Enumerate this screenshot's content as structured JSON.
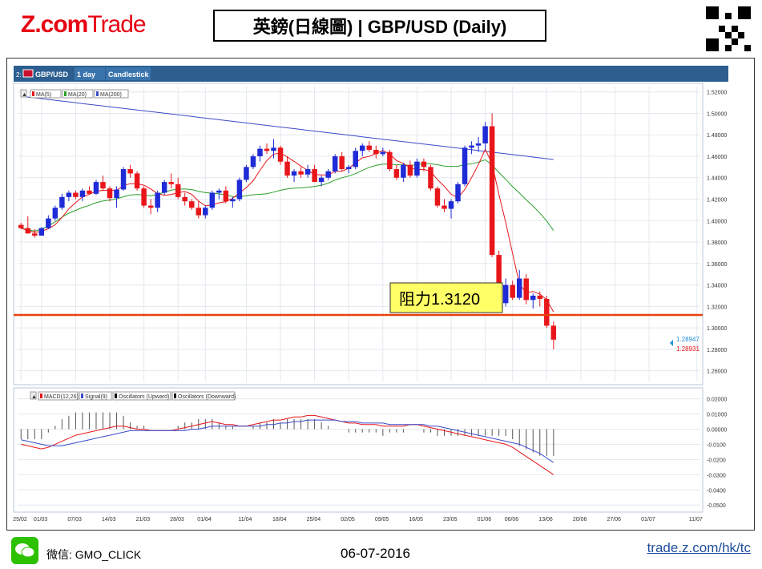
{
  "header": {
    "logo_z": "Z.",
    "logo_com": "com",
    "logo_trade": "Trade",
    "title": "英鎊(日線圖) | GBP/USD (Daily)"
  },
  "toolbar": {
    "index": "2:",
    "symbol": "GBP/USD",
    "interval": "1 day",
    "chart_style": "Candlestick"
  },
  "legend_main": [
    "MA(5)",
    "MA(20)",
    "MA(200)"
  ],
  "legend_osc": [
    "MACD(12,26)",
    "Signal(9)",
    "Oscillators (Upward)",
    "Oscillators (Downward)"
  ],
  "annotation": {
    "label": "阻力1.3120",
    "level": 1.312
  },
  "price_tags": {
    "bid": "1.28947",
    "ask": "1.28931"
  },
  "footer": {
    "wechat": "微信: GMO_CLICK",
    "date": "06-07-2016",
    "link": "trade.z.com/hk/tc"
  },
  "colors": {
    "up": "#1f2bd6",
    "down": "#e8161a",
    "ma5": "#e8161a",
    "ma20": "#2ca02c",
    "ma200": "#3b4bc8",
    "resistance": "#e8400c"
  },
  "chart_data": {
    "type": "candlestick",
    "y_ticks": [
      "1.52000",
      "1.50000",
      "1.48000",
      "1.46000",
      "1.44000",
      "1.42000",
      "1.40000",
      "1.38000",
      "1.36000",
      "1.34000",
      "1.32000",
      "1.30000",
      "1.28000",
      "1.26000"
    ],
    "ylim": [
      1.25,
      1.525
    ],
    "osc_ticks": [
      "0.02000",
      "0.01000",
      "0.00000",
      "-0.0100",
      "-0.0200",
      "-0.0300",
      "-0.0400",
      "-0.0500"
    ],
    "osc_ylim": [
      -0.052,
      0.024
    ],
    "x_labels": [
      "25/02",
      "01/03",
      "07/03",
      "14/03",
      "21/03",
      "28/03",
      "01/04",
      "11/04",
      "18/04",
      "25/04",
      "02/05",
      "09/05",
      "16/05",
      "23/05",
      "01/06",
      "06/06",
      "13/06",
      "20/06",
      "27/06",
      "01/07",
      "11/07"
    ],
    "x_label_slots": [
      0,
      3,
      8,
      13,
      18,
      23,
      27,
      33,
      38,
      43,
      48,
      53,
      58,
      63,
      68,
      72,
      77,
      82,
      87,
      92,
      99
    ],
    "candles": [
      [
        1.396,
        1.398,
        1.392,
        1.393
      ],
      [
        1.393,
        1.404,
        1.39,
        1.388
      ],
      [
        1.388,
        1.392,
        1.384,
        1.386
      ],
      [
        1.386,
        1.394,
        1.386,
        1.393
      ],
      [
        1.393,
        1.405,
        1.392,
        1.402
      ],
      [
        1.402,
        1.414,
        1.4,
        1.412
      ],
      [
        1.412,
        1.425,
        1.41,
        1.422
      ],
      [
        1.422,
        1.428,
        1.418,
        1.426
      ],
      [
        1.426,
        1.428,
        1.42,
        1.422
      ],
      [
        1.422,
        1.43,
        1.418,
        1.428
      ],
      [
        1.428,
        1.432,
        1.424,
        1.425
      ],
      [
        1.425,
        1.438,
        1.424,
        1.436
      ],
      [
        1.436,
        1.442,
        1.428,
        1.43
      ],
      [
        1.43,
        1.432,
        1.418,
        1.421
      ],
      [
        1.421,
        1.432,
        1.412,
        1.429
      ],
      [
        1.429,
        1.45,
        1.428,
        1.448
      ],
      [
        1.448,
        1.452,
        1.44,
        1.444
      ],
      [
        1.444,
        1.446,
        1.428,
        1.43
      ],
      [
        1.43,
        1.432,
        1.412,
        1.414
      ],
      [
        1.414,
        1.42,
        1.406,
        1.412
      ],
      [
        1.412,
        1.428,
        1.408,
        1.426
      ],
      [
        1.426,
        1.438,
        1.424,
        1.436
      ],
      [
        1.436,
        1.444,
        1.43,
        1.434
      ],
      [
        1.434,
        1.44,
        1.42,
        1.422
      ],
      [
        1.422,
        1.426,
        1.414,
        1.418
      ],
      [
        1.418,
        1.42,
        1.41,
        1.412
      ],
      [
        1.412,
        1.418,
        1.402,
        1.405
      ],
      [
        1.405,
        1.414,
        1.402,
        1.412
      ],
      [
        1.412,
        1.428,
        1.41,
        1.426
      ],
      [
        1.426,
        1.43,
        1.42,
        1.428
      ],
      [
        1.428,
        1.432,
        1.416,
        1.418
      ],
      [
        1.418,
        1.422,
        1.412,
        1.42
      ],
      [
        1.42,
        1.44,
        1.418,
        1.438
      ],
      [
        1.438,
        1.452,
        1.436,
        1.45
      ],
      [
        1.45,
        1.462,
        1.448,
        1.46
      ],
      [
        1.46,
        1.47,
        1.455,
        1.467
      ],
      [
        1.467,
        1.472,
        1.462,
        1.465
      ],
      [
        1.465,
        1.476,
        1.458,
        1.468
      ],
      [
        1.468,
        1.47,
        1.452,
        1.455
      ],
      [
        1.455,
        1.46,
        1.44,
        1.442
      ],
      [
        1.442,
        1.448,
        1.436,
        1.446
      ],
      [
        1.446,
        1.45,
        1.44,
        1.443
      ],
      [
        1.443,
        1.452,
        1.44,
        1.448
      ],
      [
        1.448,
        1.452,
        1.438,
        1.436
      ],
      [
        1.436,
        1.442,
        1.432,
        1.44
      ],
      [
        1.44,
        1.448,
        1.438,
        1.446
      ],
      [
        1.446,
        1.462,
        1.444,
        1.46
      ],
      [
        1.46,
        1.464,
        1.446,
        1.448
      ],
      [
        1.448,
        1.452,
        1.444,
        1.45
      ],
      [
        1.45,
        1.468,
        1.448,
        1.465
      ],
      [
        1.465,
        1.472,
        1.46,
        1.47
      ],
      [
        1.47,
        1.474,
        1.464,
        1.466
      ],
      [
        1.466,
        1.47,
        1.458,
        1.462
      ],
      [
        1.462,
        1.468,
        1.46,
        1.464
      ],
      [
        1.464,
        1.466,
        1.446,
        1.448
      ],
      [
        1.448,
        1.452,
        1.438,
        1.44
      ],
      [
        1.44,
        1.454,
        1.436,
        1.452
      ],
      [
        1.452,
        1.456,
        1.44,
        1.442
      ],
      [
        1.442,
        1.458,
        1.44,
        1.455
      ],
      [
        1.455,
        1.458,
        1.446,
        1.45
      ],
      [
        1.45,
        1.452,
        1.428,
        1.43
      ],
      [
        1.43,
        1.432,
        1.412,
        1.414
      ],
      [
        1.414,
        1.42,
        1.408,
        1.411
      ],
      [
        1.411,
        1.42,
        1.402,
        1.418
      ],
      [
        1.418,
        1.436,
        1.416,
        1.434
      ],
      [
        1.434,
        1.47,
        1.432,
        1.468
      ],
      [
        1.468,
        1.474,
        1.462,
        1.47
      ],
      [
        1.47,
        1.478,
        1.464,
        1.472
      ],
      [
        1.472,
        1.492,
        1.466,
        1.488
      ],
      [
        1.488,
        1.5,
        1.366,
        1.368
      ],
      [
        1.368,
        1.372,
        1.322,
        1.323
      ],
      [
        1.323,
        1.346,
        1.32,
        1.34
      ],
      [
        1.34,
        1.344,
        1.326,
        1.328
      ],
      [
        1.328,
        1.354,
        1.326,
        1.346
      ],
      [
        1.346,
        1.35,
        1.322,
        1.326
      ],
      [
        1.326,
        1.332,
        1.318,
        1.33
      ],
      [
        1.33,
        1.334,
        1.32,
        1.327
      ],
      [
        1.327,
        1.33,
        1.3,
        1.302
      ],
      [
        1.302,
        1.306,
        1.28,
        1.289
      ]
    ],
    "macd": [
      -0.01,
      -0.011,
      -0.012,
      -0.013,
      -0.012,
      -0.01,
      -0.008,
      -0.006,
      -0.004,
      -0.003,
      -0.002,
      -0.001,
      0.0,
      0.001,
      0.002,
      0.002,
      0.001,
      0.0,
      0.0,
      -0.001,
      -0.001,
      -0.001,
      -0.001,
      0.0,
      0.001,
      0.002,
      0.003,
      0.004,
      0.005,
      0.004,
      0.003,
      0.003,
      0.002,
      0.002,
      0.003,
      0.004,
      0.005,
      0.006,
      0.006,
      0.007,
      0.008,
      0.008,
      0.009,
      0.009,
      0.008,
      0.007,
      0.006,
      0.005,
      0.004,
      0.004,
      0.003,
      0.003,
      0.003,
      0.002,
      0.002,
      0.002,
      0.002,
      0.003,
      0.003,
      0.002,
      0.001,
      0.0,
      -0.001,
      -0.002,
      -0.003,
      -0.004,
      -0.005,
      -0.006,
      -0.007,
      -0.008,
      -0.009,
      -0.01,
      -0.012,
      -0.015,
      -0.018,
      -0.021,
      -0.024,
      -0.027,
      -0.03
    ],
    "signal": [
      -0.007,
      -0.008,
      -0.009,
      -0.01,
      -0.011,
      -0.011,
      -0.011,
      -0.01,
      -0.009,
      -0.008,
      -0.007,
      -0.006,
      -0.005,
      -0.004,
      -0.003,
      -0.002,
      -0.001,
      -0.001,
      -0.001,
      -0.001,
      -0.001,
      -0.001,
      -0.001,
      -0.001,
      -0.001,
      0.0,
      0.0,
      0.001,
      0.002,
      0.002,
      0.002,
      0.002,
      0.002,
      0.002,
      0.002,
      0.002,
      0.003,
      0.003,
      0.004,
      0.004,
      0.005,
      0.005,
      0.006,
      0.006,
      0.006,
      0.006,
      0.006,
      0.005,
      0.005,
      0.005,
      0.004,
      0.004,
      0.004,
      0.004,
      0.003,
      0.003,
      0.003,
      0.003,
      0.003,
      0.003,
      0.002,
      0.002,
      0.001,
      0.0,
      -0.001,
      -0.002,
      -0.003,
      -0.004,
      -0.005,
      -0.006,
      -0.007,
      -0.008,
      -0.009,
      -0.01,
      -0.012,
      -0.014,
      -0.016,
      -0.019,
      -0.022
    ]
  }
}
